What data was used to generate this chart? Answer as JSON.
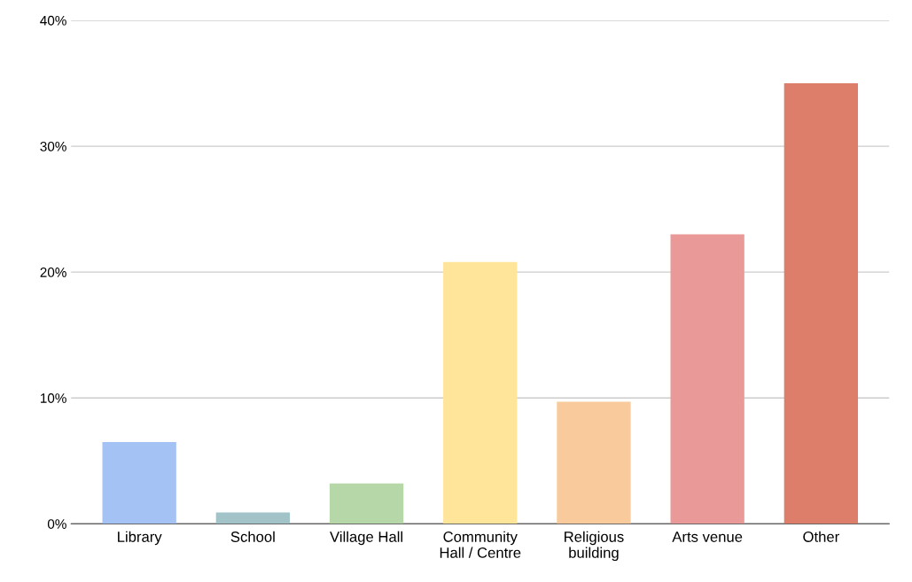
{
  "chart_data": {
    "type": "bar",
    "categories": [
      "Library",
      "School",
      "Village Hall",
      "Community\nHall / Centre",
      "Religious\nbuilding",
      "Arts venue",
      "Other"
    ],
    "values": [
      6.5,
      0.9,
      3.2,
      20.8,
      9.7,
      23.0,
      35.0
    ],
    "colors": [
      "#a4c2f4",
      "#a2c4c9",
      "#b6d7a8",
      "#ffe599",
      "#f9cb9c",
      "#ea9999",
      "#dd7e6b"
    ],
    "ylim": [
      0,
      40
    ],
    "yticks": [
      {
        "value": 0,
        "label": "0%"
      },
      {
        "value": 10,
        "label": "10%"
      },
      {
        "value": 20,
        "label": "20%"
      },
      {
        "value": 30,
        "label": "30%"
      },
      {
        "value": 40,
        "label": "40%"
      }
    ],
    "grid": "y"
  }
}
